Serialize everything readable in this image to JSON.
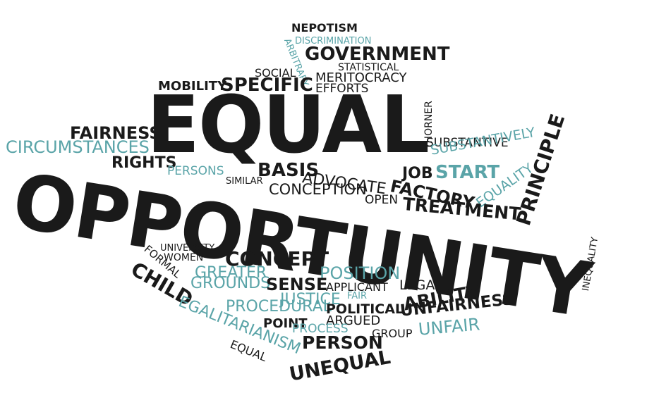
{
  "colors": {
    "dark": "#1a1a1a",
    "teal": "#5aa4a8",
    "background": "#ffffff"
  },
  "words": [
    {
      "text": "NEPOTISM",
      "color": "dark"
    },
    {
      "text": "DISCRIMINATION",
      "color": "teal"
    },
    {
      "text": "ARBITRARY",
      "color": "teal"
    },
    {
      "text": "GOVERNMENT",
      "color": "dark"
    },
    {
      "text": "STATISTICAL",
      "color": "dark"
    },
    {
      "text": "SOCIAL",
      "color": "dark"
    },
    {
      "text": "MERITOCRACY",
      "color": "dark"
    },
    {
      "text": "MOBILITY",
      "color": "dark"
    },
    {
      "text": "SPECIFIC",
      "color": "dark"
    },
    {
      "text": "EFFORTS",
      "color": "dark"
    },
    {
      "text": "EQUAL",
      "color": "dark"
    },
    {
      "text": "THORNER",
      "color": "dark"
    },
    {
      "text": "FAIRNESS",
      "color": "dark"
    },
    {
      "text": "CIRCUMSTANCES",
      "color": "teal"
    },
    {
      "text": "SUBSTANTIVE",
      "color": "dark"
    },
    {
      "text": "SUBSTANTIVELY",
      "color": "teal"
    },
    {
      "text": "PRINCIPLE",
      "color": "dark"
    },
    {
      "text": "RIGHTS",
      "color": "dark"
    },
    {
      "text": "PERSONS",
      "color": "teal"
    },
    {
      "text": "SIMILAR",
      "color": "dark"
    },
    {
      "text": "BASIS",
      "color": "dark"
    },
    {
      "text": "ADVOCATE",
      "color": "dark"
    },
    {
      "text": "CONCEPTION",
      "color": "dark"
    },
    {
      "text": "OPEN",
      "color": "dark"
    },
    {
      "text": "JOB",
      "color": "dark"
    },
    {
      "text": "START",
      "color": "teal"
    },
    {
      "text": "EQUALITY",
      "color": "teal"
    },
    {
      "text": "FACTORY",
      "color": "dark"
    },
    {
      "text": "TREATMENT",
      "color": "dark"
    },
    {
      "text": "OPPORTUNITY",
      "color": "dark"
    },
    {
      "text": "INEQUALITY",
      "color": "dark"
    },
    {
      "text": "FORMAL",
      "color": "dark"
    },
    {
      "text": "UNIVERSITY",
      "color": "dark"
    },
    {
      "text": "WOMEN",
      "color": "dark"
    },
    {
      "text": "CONCEPT",
      "color": "dark"
    },
    {
      "text": "CHILD",
      "color": "dark"
    },
    {
      "text": "GREATER",
      "color": "teal"
    },
    {
      "text": "POSITION",
      "color": "teal"
    },
    {
      "text": "GROUNDS",
      "color": "teal"
    },
    {
      "text": "SENSE",
      "color": "dark"
    },
    {
      "text": "APPLICANT",
      "color": "dark"
    },
    {
      "text": "LEGAL",
      "color": "dark"
    },
    {
      "text": "FAIR",
      "color": "teal"
    },
    {
      "text": "JUSTICE",
      "color": "teal"
    },
    {
      "text": "PROCEDURAL",
      "color": "teal"
    },
    {
      "text": "ABILITY",
      "color": "dark"
    },
    {
      "text": "EGALITARIANISM",
      "color": "teal"
    },
    {
      "text": "POLITICAL",
      "color": "dark"
    },
    {
      "text": "UNFAIRNESS",
      "color": "dark"
    },
    {
      "text": "ARGUED",
      "color": "dark"
    },
    {
      "text": "POINT",
      "color": "dark"
    },
    {
      "text": "PROCESS",
      "color": "teal"
    },
    {
      "text": "GROUP",
      "color": "dark"
    },
    {
      "text": "UNFAIR",
      "color": "teal"
    },
    {
      "text": "EQUAL",
      "color": "dark"
    },
    {
      "text": "PERSON",
      "color": "dark"
    },
    {
      "text": "UNEQUAL",
      "color": "dark"
    }
  ]
}
